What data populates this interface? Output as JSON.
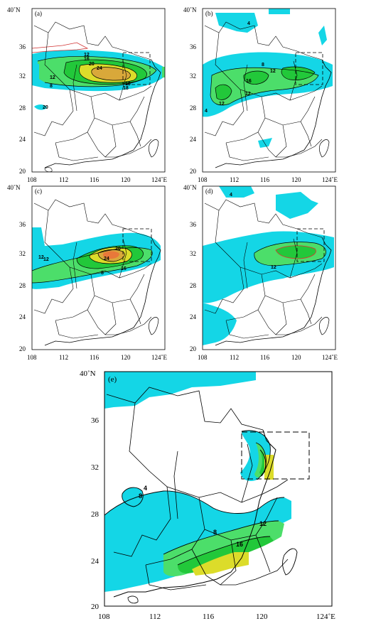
{
  "panels": [
    {
      "id": "a",
      "label": "(a)",
      "y_top": "40˚N",
      "y_ticks": [
        "36",
        "32",
        "28",
        "24",
        "20"
      ],
      "x_ticks": [
        "108",
        "112",
        "116",
        "120",
        "124˚E"
      ],
      "contour_labels": [
        "12",
        "16",
        "20",
        "24",
        "12",
        "8",
        "18",
        "16",
        "20",
        "16"
      ]
    },
    {
      "id": "b",
      "label": "(b)",
      "y_top": "40˚N",
      "y_ticks": [
        "36",
        "32",
        "28",
        "24",
        "20"
      ],
      "x_ticks": [
        "108",
        "112",
        "116",
        "120",
        "124˚E"
      ],
      "contour_labels": [
        "4",
        "8",
        "12",
        "16",
        "12",
        "12",
        "4"
      ]
    },
    {
      "id": "c",
      "label": "(c)",
      "y_top": "40˚N",
      "y_ticks": [
        "36",
        "32",
        "28",
        "24",
        "20"
      ],
      "x_ticks": [
        "108",
        "112",
        "116",
        "120",
        "124˚E"
      ],
      "contour_labels": [
        "20",
        "24",
        "16",
        "12",
        "8",
        "12"
      ]
    },
    {
      "id": "d",
      "label": "(d)",
      "y_top": "40˚N",
      "y_ticks": [
        "36",
        "32",
        "28",
        "24",
        "20"
      ],
      "x_ticks": [
        "108",
        "112",
        "116",
        "120",
        "124˚E"
      ],
      "contour_labels": [
        "4",
        "12"
      ]
    },
    {
      "id": "e",
      "label": "(e)",
      "y_top": "40˚N",
      "y_ticks": [
        "36",
        "32",
        "28",
        "24",
        "20"
      ],
      "x_ticks": [
        "108",
        "112",
        "116",
        "120",
        "124˚E"
      ],
      "contour_labels": [
        "4",
        "8",
        "8",
        "12",
        "16"
      ]
    }
  ],
  "colors": {
    "cyan": "#14d6e6",
    "lightgreen": "#4cde6a",
    "green": "#22c83a",
    "yellow": "#dcdc2a",
    "orange": "#d9a83a",
    "redorange": "#e8783a",
    "line": "#000000"
  }
}
